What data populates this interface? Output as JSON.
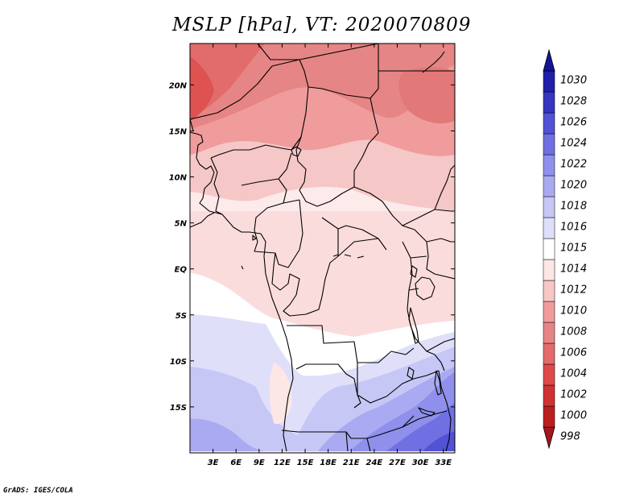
{
  "title": "MSLP [hPa], VT: 2020070809",
  "credit": "GrADS: IGES/COLA",
  "chart_data": {
    "type": "heatmap",
    "variable": "MSLP",
    "units": "hPa",
    "valid_time": "2020070809",
    "lon_range": [
      0,
      34.5
    ],
    "lat_range": [
      -20,
      24.5
    ],
    "x_ticks": [
      "3E",
      "6E",
      "9E",
      "12E",
      "15E",
      "18E",
      "21E",
      "24E",
      "27E",
      "30E",
      "33E"
    ],
    "x_tick_values": [
      3,
      6,
      9,
      12,
      15,
      18,
      21,
      24,
      27,
      30,
      33
    ],
    "y_ticks": [
      "20N",
      "15N",
      "10N",
      "5N",
      "EQ",
      "5S",
      "10S",
      "15S"
    ],
    "y_tick_values": [
      20,
      15,
      10,
      5,
      0,
      -5,
      -10,
      -15
    ],
    "colorbar_labels": [
      "998",
      "1000",
      "1002",
      "1004",
      "1006",
      "1008",
      "1010",
      "1012",
      "1014",
      "1015",
      "1016",
      "1018",
      "1020",
      "1022",
      "1024",
      "1026",
      "1028",
      "1030"
    ],
    "colorbar_levels": [
      998,
      1000,
      1002,
      1004,
      1006,
      1008,
      1010,
      1012,
      1014,
      1015,
      1016,
      1018,
      1020,
      1022,
      1024,
      1026,
      1028,
      1030
    ],
    "colorbar_colors": [
      "#a8151a",
      "#bb1e1f",
      "#cf3232",
      "#de4a4a",
      "#e26b6b",
      "#e68585",
      "#f09c9c",
      "#f6c7c7",
      "#fde6e6",
      "#ffffff",
      "#dfdffa",
      "#c7c7f6",
      "#aaaaf2",
      "#8f8fec",
      "#7070e2",
      "#5252d4",
      "#3535bf",
      "#1f1fa8",
      "#14149a"
    ]
  }
}
